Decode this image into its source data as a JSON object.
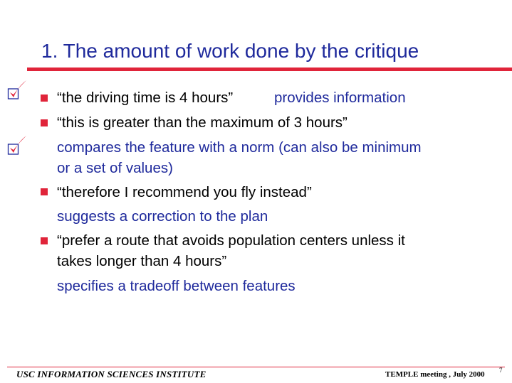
{
  "slide": {
    "title": "1. The amount of work done by the critique",
    "lines": [
      "“the driving time is 4 hours”",
      "provides information",
      "“this is greater than the maximum of 3 hours”",
      "compares the feature with a norm (can also be minimum",
      "or a set of values)",
      "“therefore I recommend you fly instead”",
      "suggests a correction to the plan",
      "“prefer a route that avoids population centers unless it",
      "takes longer than 4 hours”",
      "specifies a tradeoff between features"
    ]
  },
  "footer": {
    "left": "USC INFORMATION SCIENCES INSTITUTE",
    "right": "TEMPLE meeting , July 2000",
    "page": "7"
  },
  "icons": {
    "check": "checkmark-icon",
    "bullet": "square-bullet-icon"
  },
  "colors": {
    "title": "#1f2a9c",
    "accent": "#e0243a",
    "blue_text": "#1f2a9c"
  }
}
